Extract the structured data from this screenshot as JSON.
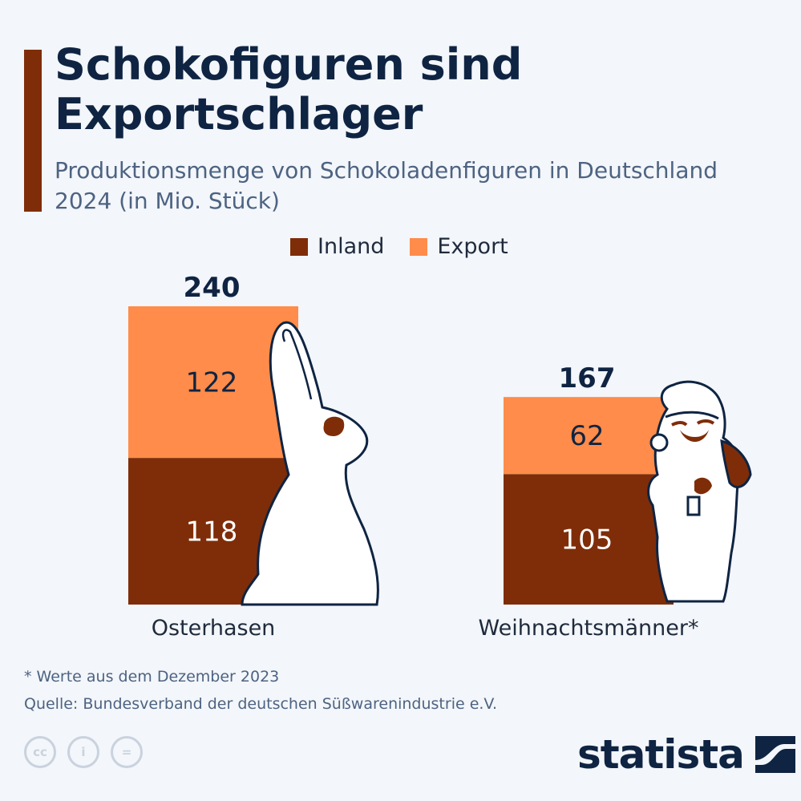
{
  "header": {
    "title": "Schokofiguren sind Exportschlager",
    "subtitle": "Produktionsmenge von Schokoladenfiguren in Deutschland 2024 (in Mio. Stück)"
  },
  "legend": {
    "inland": "Inland",
    "export": "Export"
  },
  "colors": {
    "inland": "#7f2d08",
    "export": "#ff8c4a",
    "accent": "#7f2d08",
    "text": "#0f2442"
  },
  "chart_data": {
    "type": "bar",
    "stacked": true,
    "categories": [
      "Osterhasen",
      "Weihnachtsmänner*"
    ],
    "series": [
      {
        "name": "Inland",
        "values": [
          118,
          105
        ]
      },
      {
        "name": "Export",
        "values": [
          122,
          62
        ]
      }
    ],
    "totals": [
      240,
      167
    ],
    "title": "Schokofiguren sind Exportschlager",
    "ylim": [
      0,
      240
    ],
    "grid": false,
    "legend_position": "top"
  },
  "footer": {
    "footnote": "* Werte aus dem Dezember 2023",
    "source": "Quelle: Bundesverband der deutschen Süßwarenindustrie e.V.",
    "cc_icons": [
      "cc-icon",
      "by-icon",
      "nd-icon"
    ],
    "brand": "statista"
  }
}
